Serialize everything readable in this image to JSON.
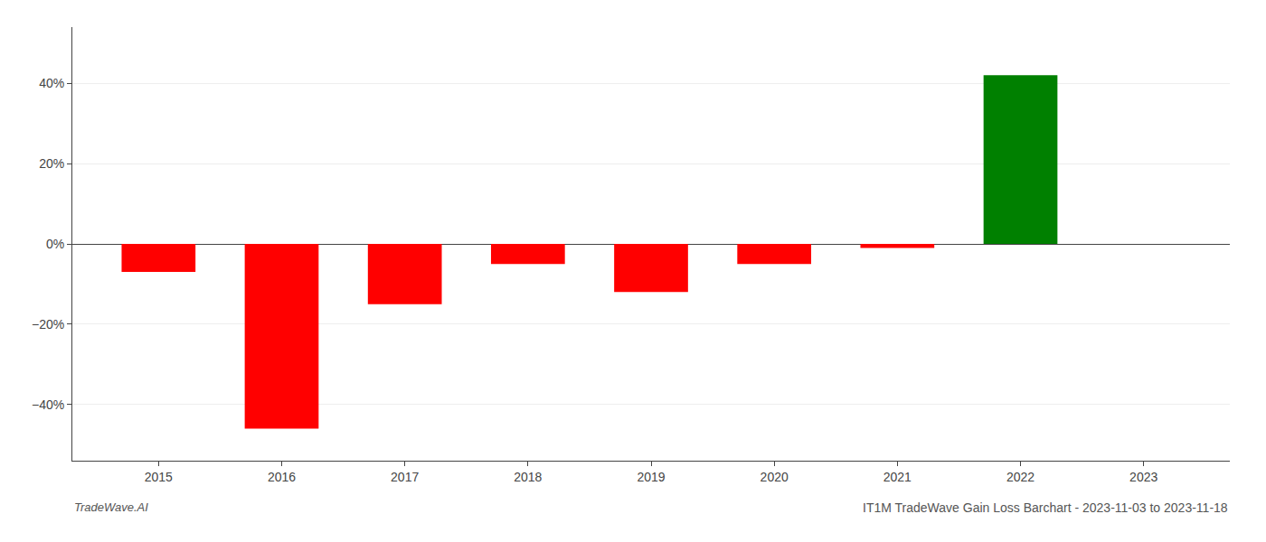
{
  "chart_data": {
    "type": "bar",
    "title": "IT1M TradeWave Gain Loss Barchart - 2023-11-03 to 2023-11-18",
    "annotations": [
      "TradeWave.AI"
    ],
    "x": [
      2015,
      2016,
      2017,
      2018,
      2019,
      2020,
      2021,
      2022,
      2023
    ],
    "values": [
      -7.0,
      -46.0,
      -15.0,
      -5.0,
      -12.0,
      -5.0,
      -1.0,
      42.0,
      null
    ],
    "colors": [
      "#ff0000",
      "#ff0000",
      "#ff0000",
      "#ff0000",
      "#ff0000",
      "#ff0000",
      "#ff0000",
      "#008000",
      null
    ],
    "xlim": [
      2014.3,
      2023.7
    ],
    "xticks": [
      2015,
      2016,
      2017,
      2018,
      2019,
      2020,
      2021,
      2022,
      2023
    ],
    "ylim": [
      -54,
      54
    ],
    "yticks": [
      {
        "value": -40,
        "label": "−40%"
      },
      {
        "value": -20,
        "label": "−20%"
      },
      {
        "value": 0,
        "label": "0%"
      },
      {
        "value": 20,
        "label": "20%"
      },
      {
        "value": 40,
        "label": "40%"
      }
    ],
    "grid": true
  }
}
